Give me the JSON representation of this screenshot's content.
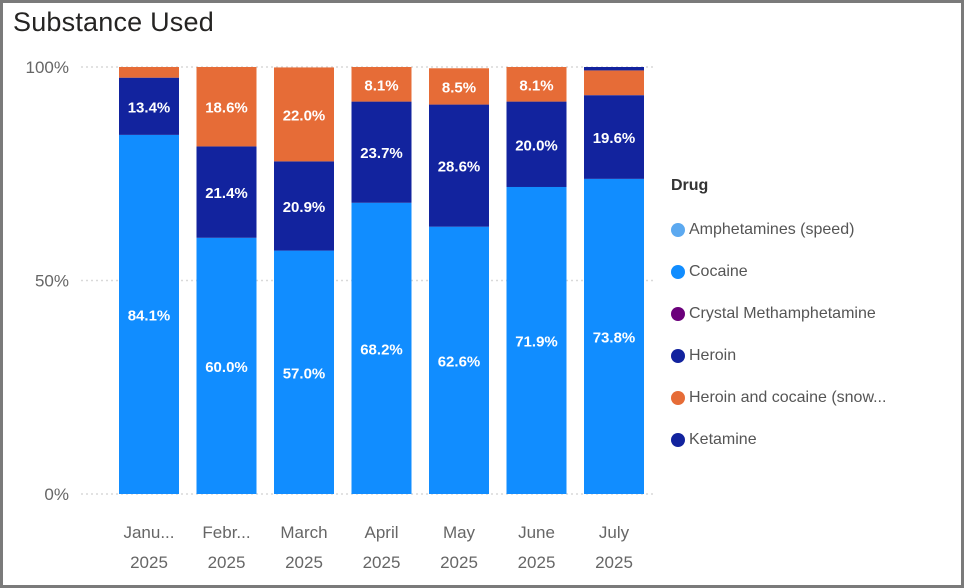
{
  "visual": {
    "title": "Substance Used"
  },
  "chart_data": {
    "type": "bar",
    "stacked": "percent",
    "title": "Substance Used",
    "xlabel": "",
    "ylabel": "",
    "ylim": [
      0,
      100
    ],
    "y_ticks": [
      "0%",
      "50%",
      "100%"
    ],
    "grid": true,
    "legend_position": "right",
    "legend_title": "Drug",
    "categories": [
      [
        "Janu...",
        "2025"
      ],
      [
        "Febr...",
        "2025"
      ],
      [
        "March",
        "2025"
      ],
      [
        "April",
        "2025"
      ],
      [
        "May",
        "2025"
      ],
      [
        "June",
        "2025"
      ],
      [
        "July",
        "2025"
      ]
    ],
    "series": [
      {
        "name": "Amphetamines (speed)",
        "color": "#5CA9F0",
        "values": [
          0,
          0,
          0,
          0,
          0,
          0,
          0
        ]
      },
      {
        "name": "Cocaine",
        "color": "#118DFF",
        "values": [
          84.1,
          60.0,
          57.0,
          68.2,
          62.6,
          71.9,
          73.8
        ]
      },
      {
        "name": "Crystal Methamphetamine",
        "color": "#6B007B",
        "values": [
          0,
          0,
          0,
          0,
          0,
          0,
          0
        ]
      },
      {
        "name": "Heroin",
        "color": "#12239E",
        "values": [
          13.4,
          21.4,
          20.9,
          23.7,
          28.6,
          20.0,
          19.6
        ]
      },
      {
        "name": "Heroin and cocaine (snow...",
        "color": "#E66C37",
        "values": [
          2.5,
          18.6,
          22.0,
          8.1,
          8.5,
          8.1,
          5.8
        ]
      },
      {
        "name": "Ketamine",
        "color": "#12239E",
        "values": [
          0,
          0,
          0,
          0,
          0,
          0,
          0.8
        ]
      }
    ],
    "data_labels": [
      [
        "",
        "84.1%",
        "",
        "13.4%",
        "",
        ""
      ],
      [
        "",
        "60.0%",
        "",
        "21.4%",
        "18.6%",
        ""
      ],
      [
        "",
        "57.0%",
        "",
        "20.9%",
        "22.0%",
        ""
      ],
      [
        "",
        "68.2%",
        "",
        "23.7%",
        "8.1%",
        ""
      ],
      [
        "",
        "62.6%",
        "",
        "28.6%",
        "8.5%",
        ""
      ],
      [
        "",
        "71.9%",
        "",
        "20.0%",
        "8.1%",
        ""
      ],
      [
        "",
        "73.8%",
        "",
        "19.6%",
        "",
        ""
      ]
    ]
  }
}
